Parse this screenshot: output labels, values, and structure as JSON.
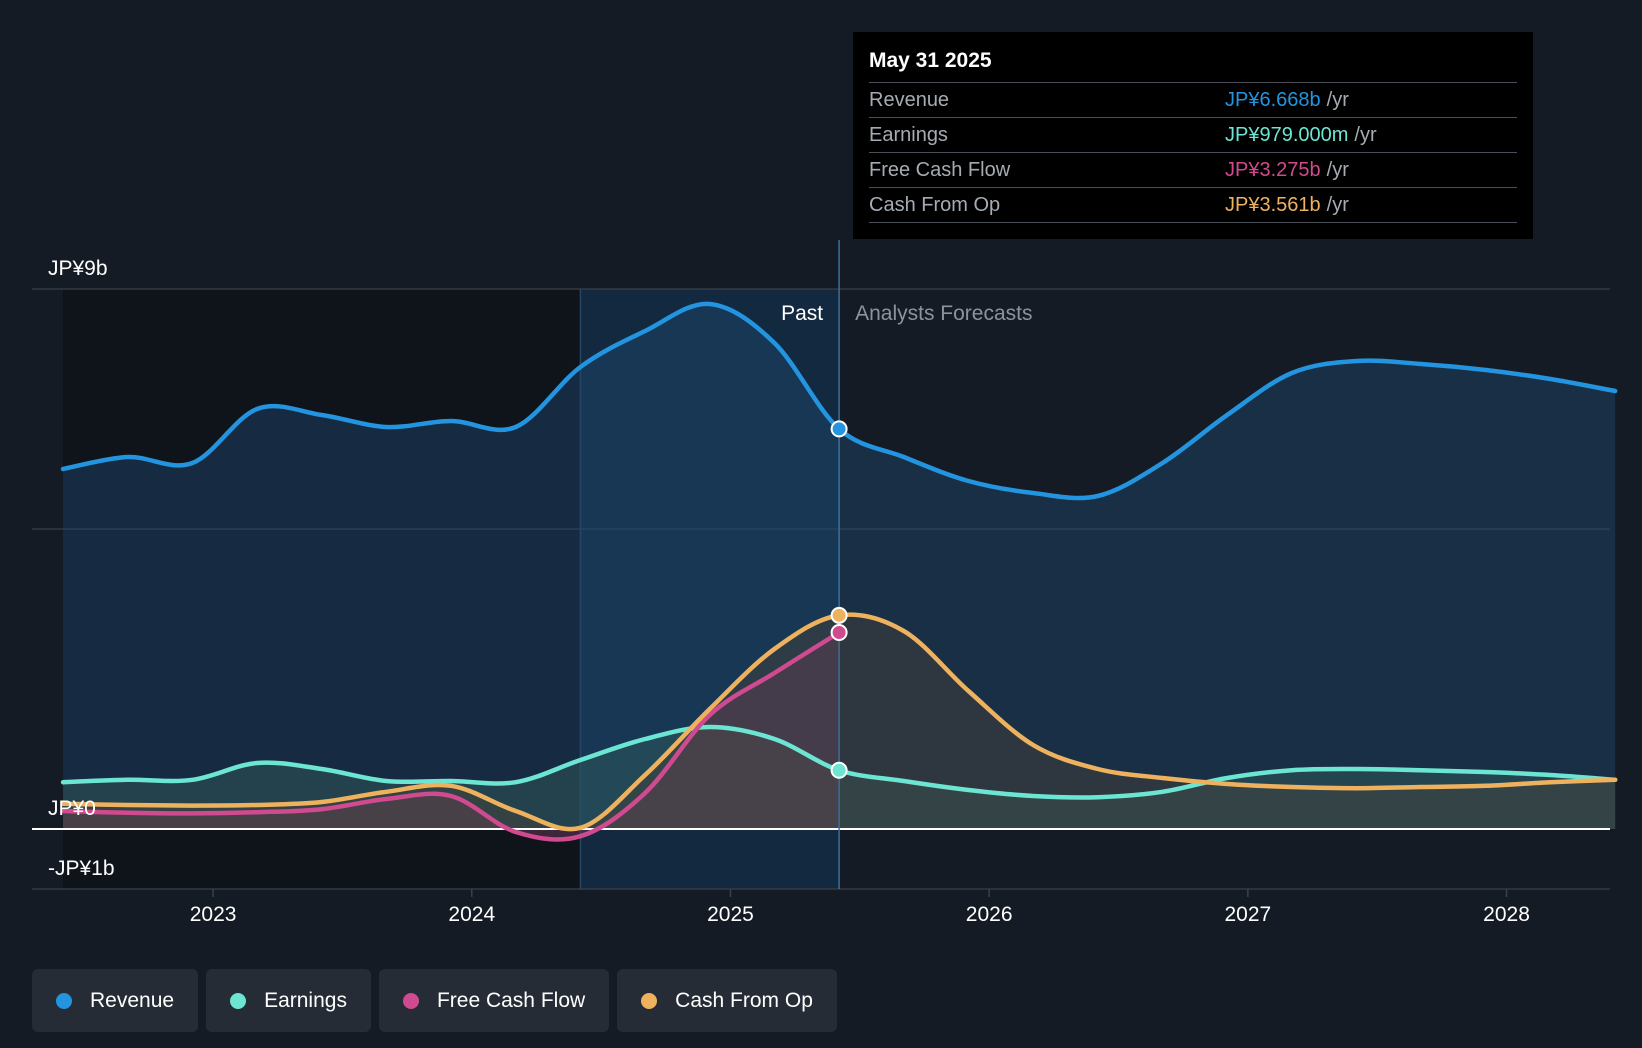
{
  "colors": {
    "revenue": "#2394df",
    "earnings": "#6ce5d3",
    "fcf": "#d04a8f",
    "cfo": "#eeb25e",
    "background": "#151b24"
  },
  "tooltip": {
    "date": "May 31 2025",
    "rows": [
      {
        "label": "Revenue",
        "value": "JP¥6.668b",
        "unit": "/yr"
      },
      {
        "label": "Earnings",
        "value": "JP¥979.000m",
        "unit": "/yr"
      },
      {
        "label": "Free Cash Flow",
        "value": "JP¥3.275b",
        "unit": "/yr"
      },
      {
        "label": "Cash From Op",
        "value": "JP¥3.561b",
        "unit": "/yr"
      }
    ]
  },
  "legend": [
    {
      "label": "Revenue",
      "icon": "revenue-dot-icon"
    },
    {
      "label": "Earnings",
      "icon": "earnings-dot-icon"
    },
    {
      "label": "Free Cash Flow",
      "icon": "fcf-dot-icon"
    },
    {
      "label": "Cash From Op",
      "icon": "cfo-dot-icon"
    }
  ],
  "chart_data": {
    "type": "line",
    "title": "",
    "xlabel": "",
    "ylabel": "",
    "ylim": [
      -1,
      9
    ],
    "xlim": [
      2022.3,
      2028.4
    ],
    "past_label": "Past",
    "forecast_label": "Analysts Forecasts",
    "y_tick_labels": [
      {
        "value": 9,
        "label": "JP¥9b"
      },
      {
        "value": 0,
        "label": "JP¥0"
      },
      {
        "value": -1,
        "label": "-JP¥1b"
      }
    ],
    "gridlines": [
      9,
      5,
      0,
      -1
    ],
    "x_ticks": [
      {
        "value": 2023,
        "label": "2023"
      },
      {
        "value": 2024,
        "label": "2024"
      },
      {
        "value": 2025,
        "label": "2025"
      },
      {
        "value": 2026,
        "label": "2026"
      },
      {
        "value": 2027,
        "label": "2027"
      },
      {
        "value": 2028,
        "label": "2028"
      }
    ],
    "highlight_start": 2024.42,
    "past_end": 2025.42,
    "series": [
      {
        "name": "Revenue",
        "key": "revenue",
        "x": [
          2022.42,
          2022.67,
          2022.92,
          2023.17,
          2023.42,
          2023.67,
          2023.92,
          2024.17,
          2024.42,
          2024.67,
          2024.92,
          2025.17,
          2025.42,
          2025.67,
          2025.92,
          2026.17,
          2026.42,
          2026.67,
          2026.92,
          2027.17,
          2027.42,
          2027.67,
          2027.92,
          2028.17,
          2028.42
        ],
        "values": [
          6.0,
          6.2,
          6.1,
          7.0,
          6.9,
          6.7,
          6.8,
          6.7,
          7.7,
          8.3,
          8.75,
          8.1,
          6.668,
          6.2,
          5.8,
          5.6,
          5.55,
          6.1,
          6.9,
          7.6,
          7.8,
          7.75,
          7.65,
          7.5,
          7.3
        ]
      },
      {
        "name": "Earnings",
        "key": "earnings",
        "x": [
          2022.42,
          2022.67,
          2022.92,
          2023.17,
          2023.42,
          2023.67,
          2023.92,
          2024.17,
          2024.42,
          2024.67,
          2024.92,
          2025.17,
          2025.42,
          2025.67,
          2025.92,
          2026.17,
          2026.42,
          2026.67,
          2026.92,
          2027.17,
          2027.42,
          2027.67,
          2027.92,
          2028.17,
          2028.42
        ],
        "values": [
          0.78,
          0.82,
          0.82,
          1.1,
          1.0,
          0.8,
          0.8,
          0.78,
          1.15,
          1.5,
          1.7,
          1.5,
          0.979,
          0.8,
          0.65,
          0.55,
          0.53,
          0.62,
          0.85,
          0.98,
          1.0,
          0.98,
          0.95,
          0.9,
          0.82
        ]
      },
      {
        "name": "Free Cash Flow",
        "key": "fcf",
        "x": [
          2022.42,
          2022.67,
          2022.92,
          2023.17,
          2023.42,
          2023.67,
          2023.92,
          2024.17,
          2024.42,
          2024.67,
          2024.92,
          2025.17,
          2025.42
        ],
        "values": [
          0.3,
          0.27,
          0.26,
          0.28,
          0.33,
          0.5,
          0.55,
          -0.05,
          -0.12,
          0.6,
          1.9,
          2.6,
          3.275
        ]
      },
      {
        "name": "Cash From Op",
        "key": "cfo",
        "x": [
          2022.42,
          2022.67,
          2022.92,
          2023.17,
          2023.42,
          2023.67,
          2023.92,
          2024.17,
          2024.42,
          2024.67,
          2024.92,
          2025.17,
          2025.42,
          2025.67,
          2025.92,
          2026.17,
          2026.42,
          2026.67,
          2026.92,
          2027.17,
          2027.42,
          2027.67,
          2027.92,
          2028.17,
          2028.42
        ],
        "values": [
          0.42,
          0.4,
          0.39,
          0.4,
          0.45,
          0.62,
          0.72,
          0.3,
          0.02,
          0.9,
          2.0,
          3.0,
          3.561,
          3.3,
          2.3,
          1.4,
          1.0,
          0.85,
          0.75,
          0.7,
          0.68,
          0.7,
          0.72,
          0.78,
          0.82
        ]
      }
    ]
  }
}
